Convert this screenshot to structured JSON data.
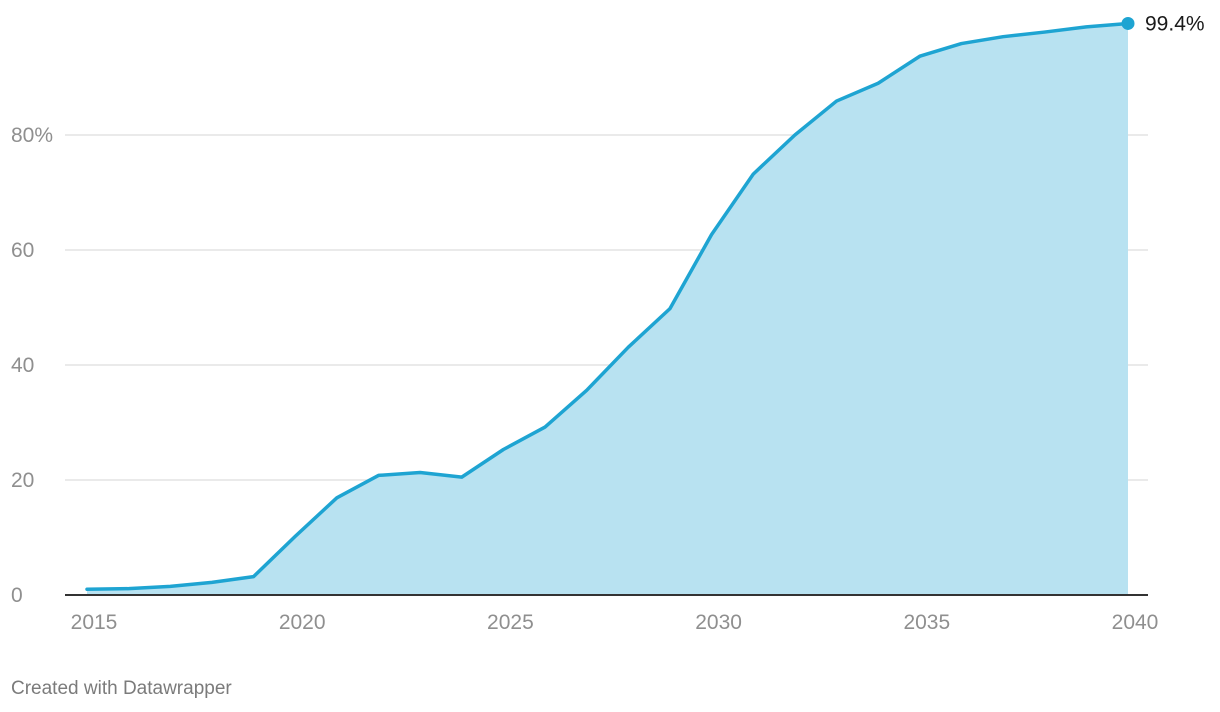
{
  "chart_data": {
    "type": "area",
    "x": [
      2015,
      2016,
      2017,
      2018,
      2019,
      2020,
      2021,
      2022,
      2023,
      2024,
      2025,
      2026,
      2027,
      2028,
      2029,
      2030,
      2031,
      2032,
      2033,
      2034,
      2035,
      2036,
      2037,
      2038,
      2039,
      2040
    ],
    "series": [
      {
        "values": [
          1.0,
          1.1,
          1.5,
          2.2,
          3.2,
          10.2,
          16.9,
          20.8,
          21.3,
          20.5,
          25.3,
          29.2,
          35.6,
          43.1,
          49.8,
          62.7,
          73.2,
          80.0,
          85.9,
          89.0,
          93.7,
          95.9,
          97.1,
          97.9,
          98.8,
          99.4
        ],
        "color": "#1ea4d2",
        "fill_color": "#b8e2f1"
      }
    ],
    "end_label": "99.4%",
    "xlim": [
      2015,
      2040
    ],
    "ylim": [
      0,
      100
    ],
    "y_ticks": [
      0,
      20,
      40,
      60,
      80
    ],
    "y_tick_labels": [
      "0",
      "20",
      "40",
      "60",
      "80%"
    ],
    "x_ticks": [
      2015,
      2020,
      2025,
      2030,
      2035,
      2040
    ],
    "x_tick_labels": [
      "2015",
      "2020",
      "2025",
      "2030",
      "2035",
      "2040"
    ],
    "grid": true,
    "title": "",
    "xlabel": "",
    "ylabel": ""
  },
  "footer": {
    "credit": "Created with Datawrapper"
  },
  "colors": {
    "grid": "#e3e3e3",
    "baseline": "#333333",
    "tick_text": "#8f8f8f",
    "credit_text": "#7b7b7b"
  }
}
